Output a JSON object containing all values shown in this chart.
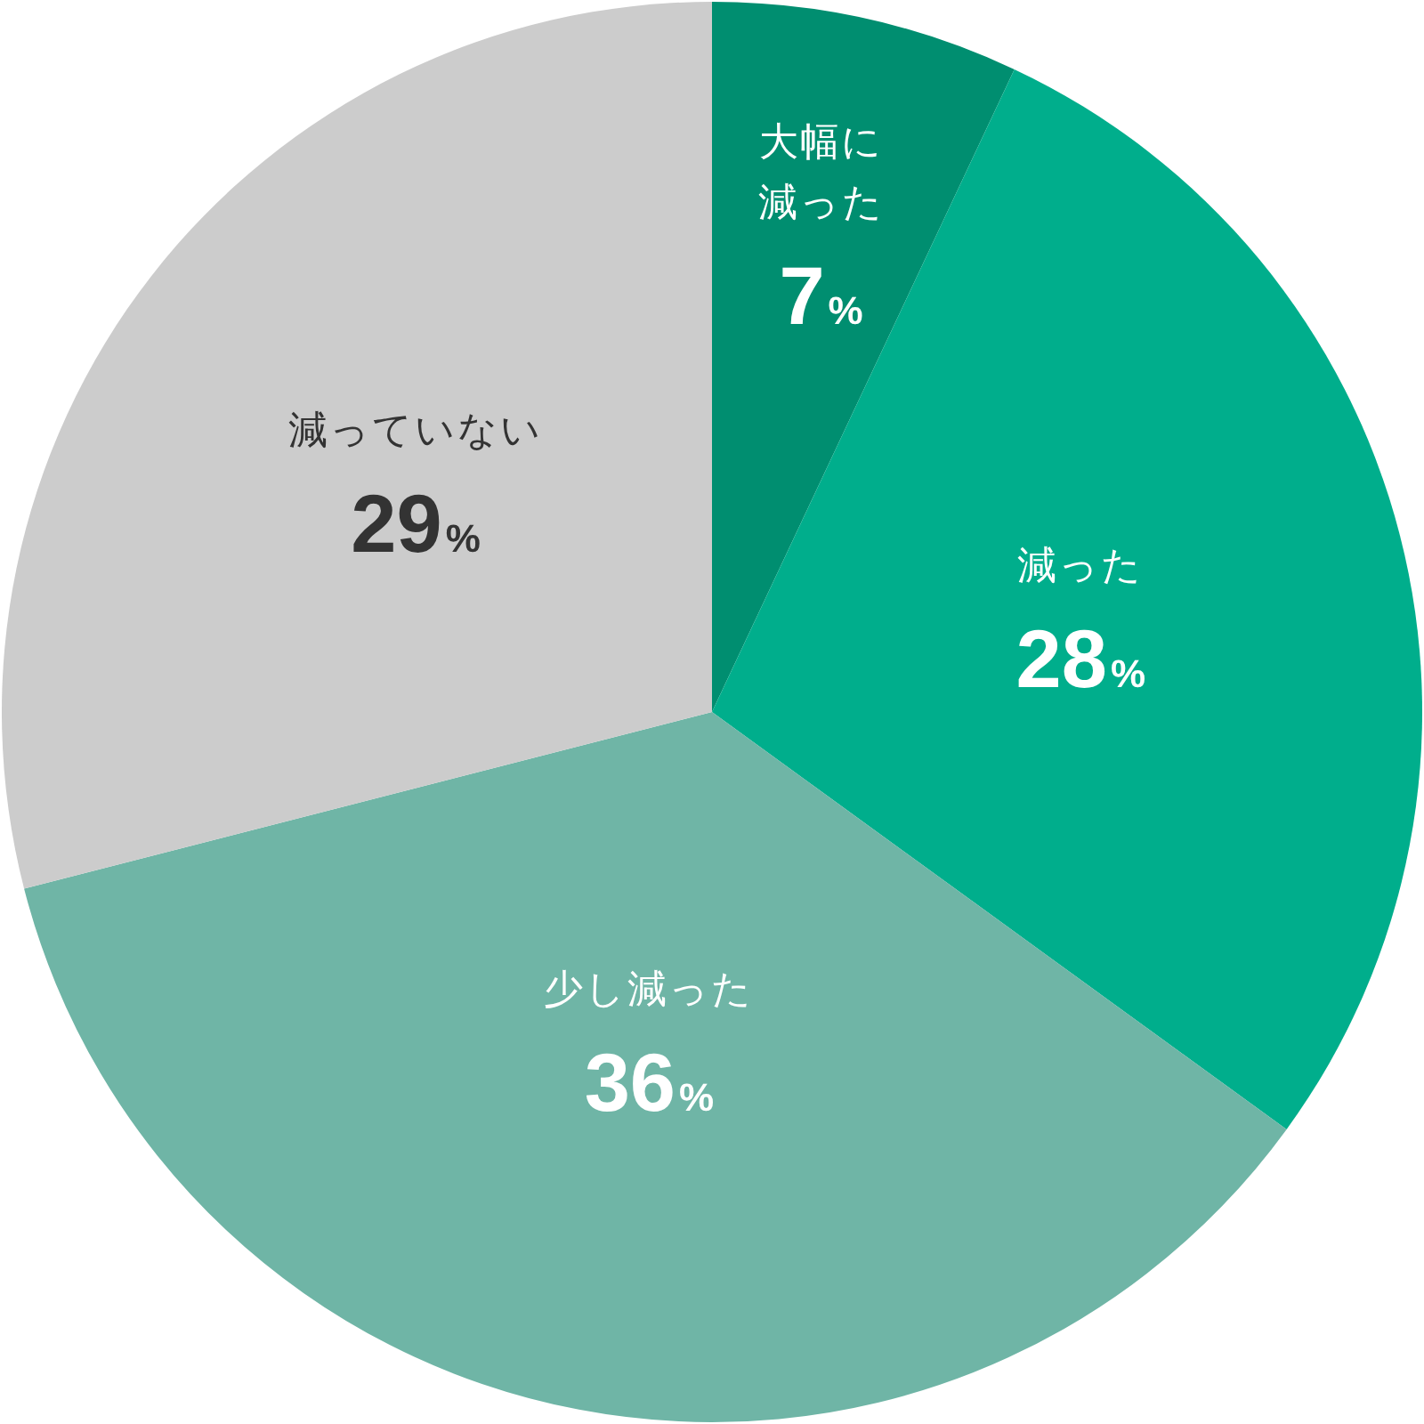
{
  "chart_data": {
    "type": "pie",
    "categories": [
      "大幅に減った",
      "減った",
      "少し減った",
      "減っていない"
    ],
    "values": [
      7,
      28,
      36,
      29
    ],
    "colors": [
      "#008e70",
      "#00ae8c",
      "#6fb5a6",
      "#cccccc"
    ],
    "value_labels": [
      "7%",
      "28%",
      "36%",
      "29%"
    ]
  }
}
